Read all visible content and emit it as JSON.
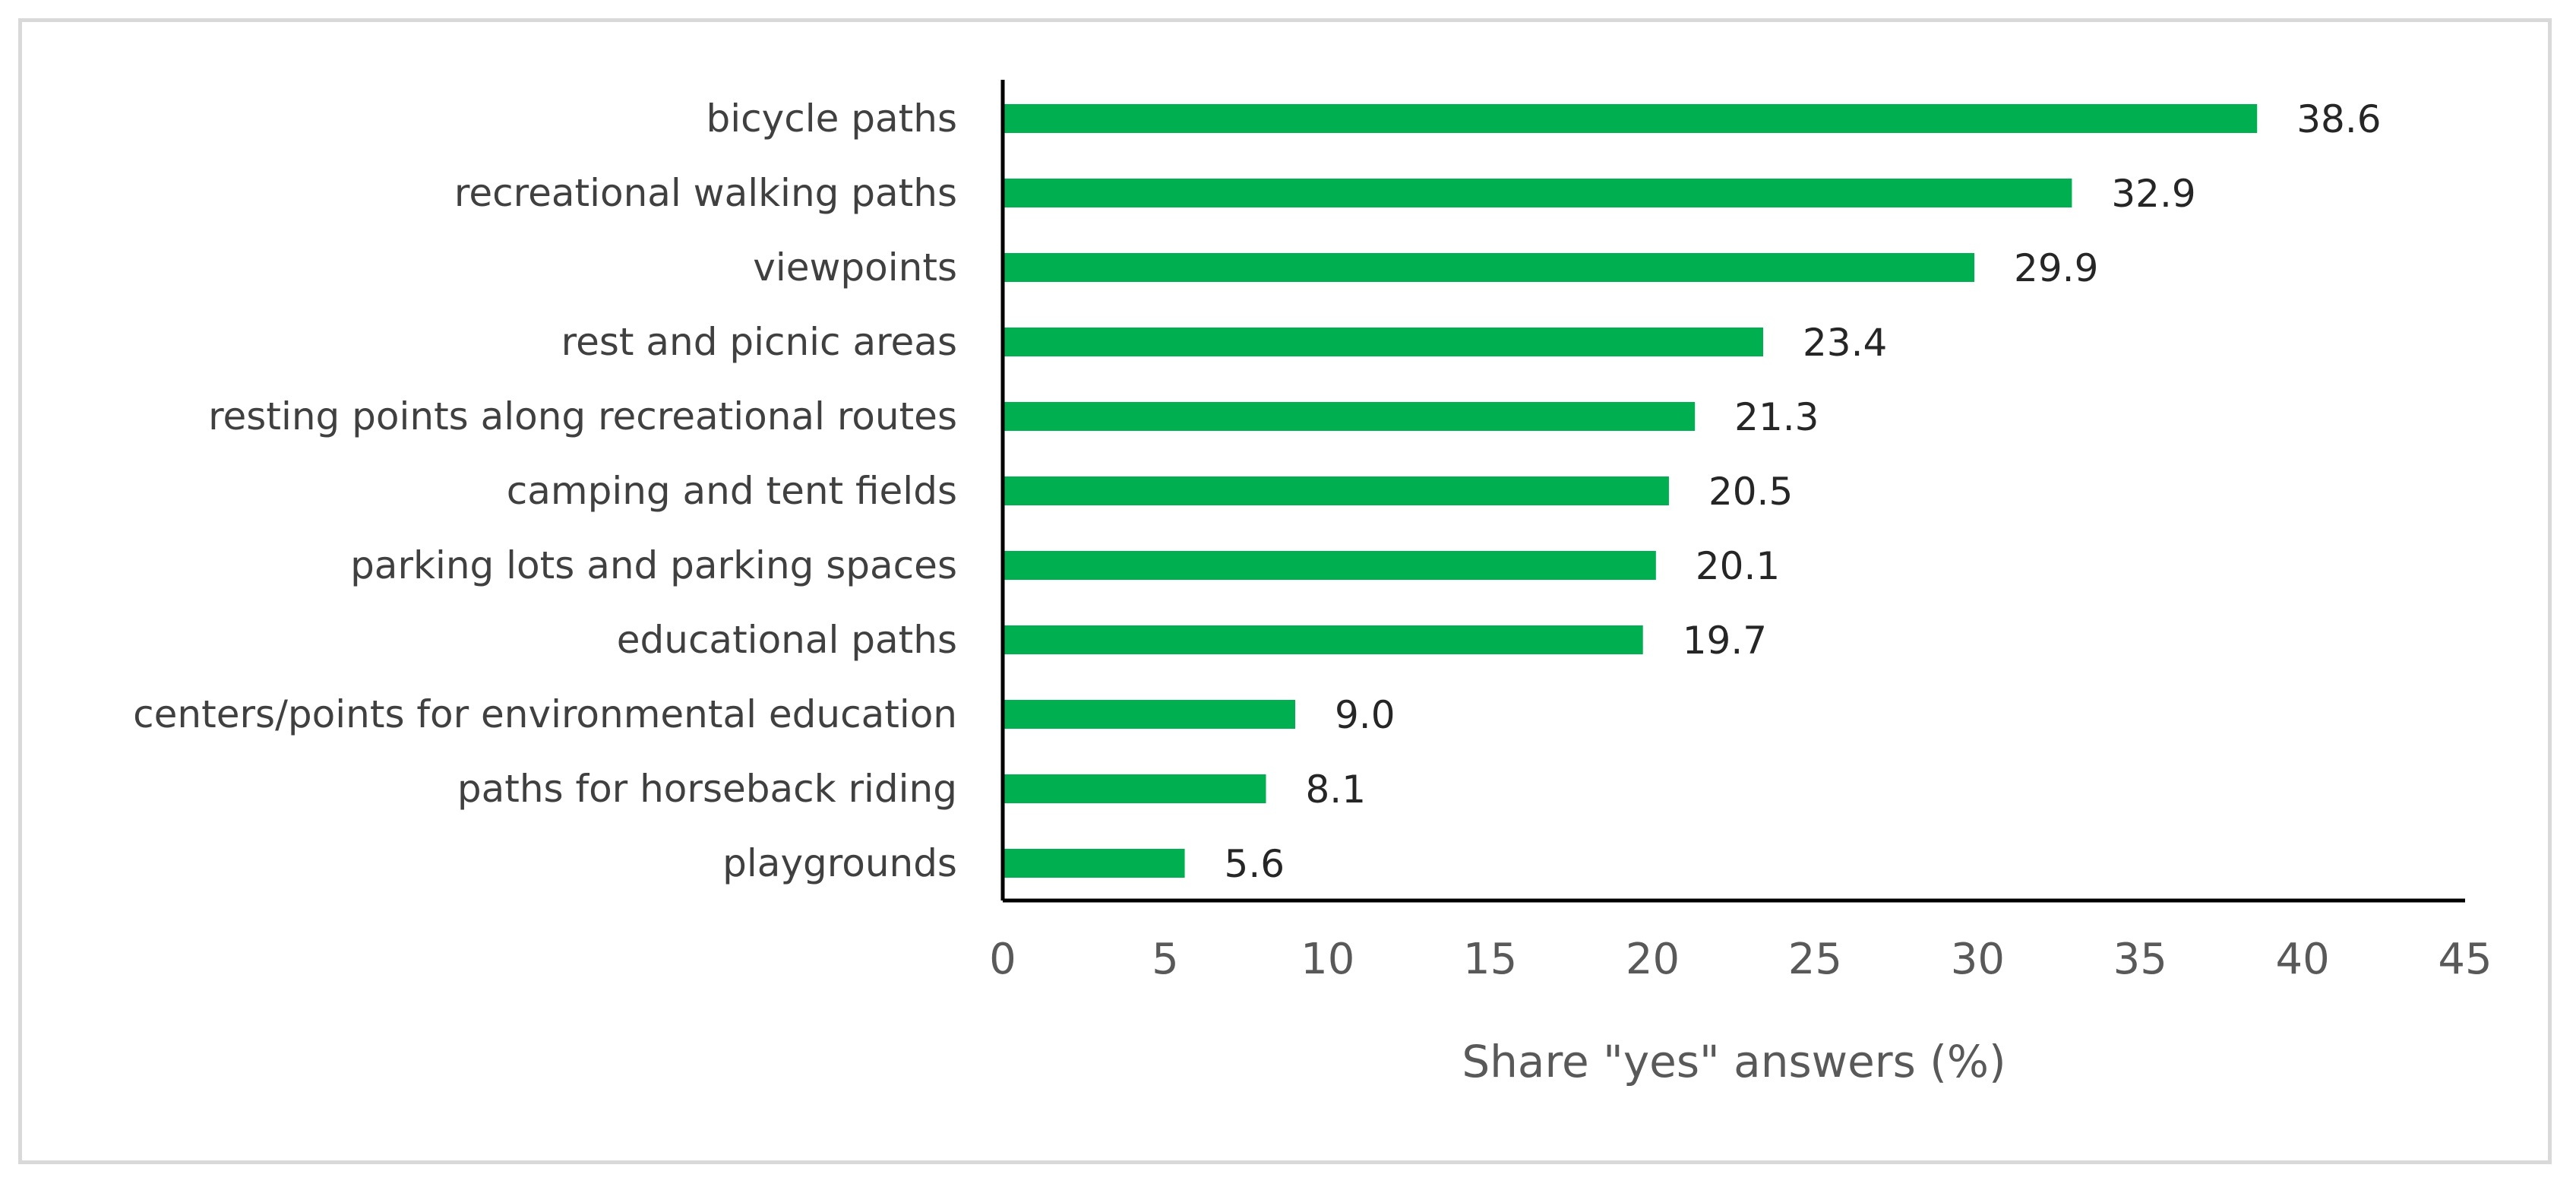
{
  "chart_data": {
    "type": "bar",
    "orientation": "horizontal",
    "categories": [
      "bicycle paths",
      "recreational walking paths",
      "viewpoints",
      "rest and picnic areas",
      "resting points along recreational routes",
      "camping and tent fields",
      "parking lots and parking spaces",
      "educational paths",
      "centers/points for environmental education",
      "paths for horseback riding",
      "playgrounds"
    ],
    "values": [
      38.6,
      32.9,
      29.9,
      23.4,
      21.3,
      20.5,
      20.1,
      19.7,
      9.0,
      8.1,
      5.6
    ],
    "value_labels": [
      "38.6",
      "32.9",
      "29.9",
      "23.4",
      "21.3",
      "20.5",
      "20.1",
      "19.7",
      "9.0",
      "8.1",
      "5.6"
    ],
    "xlabel": "Share \"yes\" answers (%)",
    "xlim": [
      0,
      45
    ],
    "xticks": [
      "0",
      "5",
      "10",
      "15",
      "20",
      "25",
      "30",
      "35",
      "40",
      "45"
    ],
    "grid": false,
    "legend": "none",
    "bar_color": "#00b050"
  }
}
